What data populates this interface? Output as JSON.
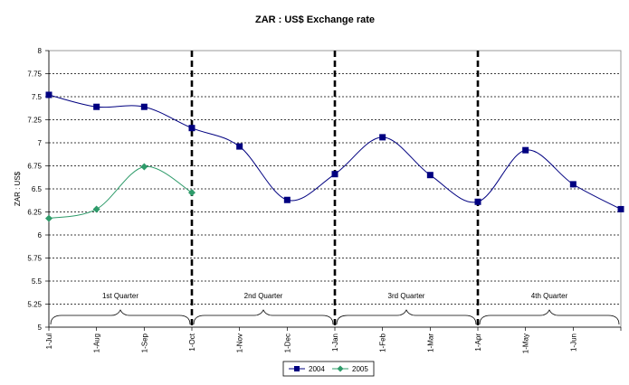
{
  "chart_data": {
    "type": "line",
    "title": "ZAR : US$ Exchange rate",
    "ylabel": "ZAR : US$",
    "xlabel": "",
    "ylim": [
      5,
      8
    ],
    "y_ticks": [
      "5",
      "5.25",
      "5.5",
      "5.75",
      "6",
      "6.25",
      "6.5",
      "6.75",
      "7",
      "7.25",
      "7.5",
      "7.75",
      "8"
    ],
    "categories": [
      "1-Jul",
      "1-Aug",
      "1-Sep",
      "1-Oct",
      "1-Nov",
      "1-Dec",
      "1-Jan",
      "1-Feb",
      "1-Mar",
      "1-Apr",
      "1-May",
      "1-Jun",
      ""
    ],
    "series": [
      {
        "name": "2004",
        "color": "#000080",
        "marker": "square",
        "values": [
          7.52,
          7.39,
          7.39,
          7.16,
          6.96,
          6.38,
          6.66,
          7.06,
          6.65,
          6.36,
          6.92,
          6.55,
          6.28
        ]
      },
      {
        "name": "2005",
        "color": "#2e9b6a",
        "marker": "diamond",
        "values": [
          6.18,
          6.28,
          6.74,
          6.46,
          null,
          null,
          null,
          null,
          null,
          null,
          null,
          null,
          null
        ]
      }
    ],
    "quarters": [
      "1st Quarter",
      "2nd Quarter",
      "3rd Quarter",
      "4th Quarter"
    ],
    "grid": true,
    "legend_position": "bottom"
  }
}
